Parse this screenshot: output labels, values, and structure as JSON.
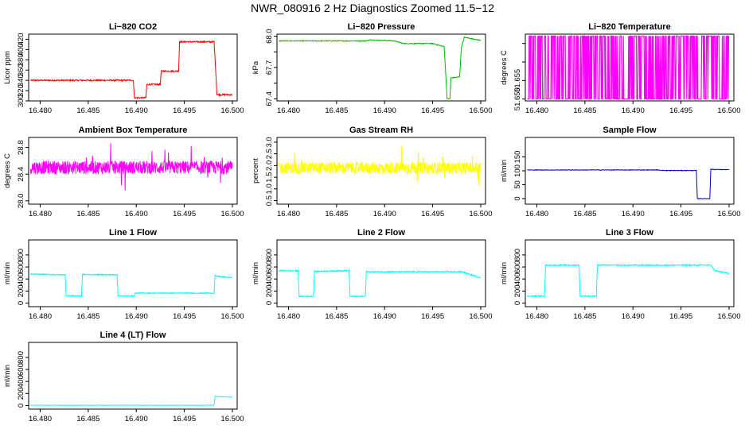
{
  "title": "NWR_080916  2 Hz Diagnostics Zoomed 11.5−12",
  "x_ticks": [
    "16.480",
    "16.485",
    "16.490",
    "16.495",
    "16.500"
  ],
  "chart_data": [
    {
      "type": "line",
      "title": "Li−820 CO2",
      "ylabel": "Licor ppm",
      "color": "#ff0000",
      "xlim": [
        16.4788,
        16.5005
      ],
      "ylim": [
        300,
        430
      ],
      "yticks": [
        300,
        320,
        340,
        360,
        380,
        400,
        420
      ],
      "segments": [
        [
          16.479,
          340
        ],
        [
          16.4897,
          340
        ],
        [
          16.4898,
          306
        ],
        [
          16.491,
          306
        ],
        [
          16.4911,
          332
        ],
        [
          16.4925,
          332
        ],
        [
          16.4926,
          358
        ],
        [
          16.4944,
          358
        ],
        [
          16.4945,
          415
        ],
        [
          16.4981,
          415
        ],
        [
          16.4984,
          312
        ],
        [
          16.5,
          312
        ]
      ],
      "noise": 1.5
    },
    {
      "type": "line",
      "title": "Li−820 Pressure",
      "ylabel": "kPa",
      "color": "#00bb00",
      "xlim": [
        16.4788,
        16.5005
      ],
      "ylim": [
        67.38,
        68.02
      ],
      "yticks": [
        "67.4",
        "",
        "67.7",
        "",
        "68.0"
      ],
      "ytick_values": [
        67.4,
        67.55,
        67.7,
        67.85,
        68.0
      ],
      "segments": [
        [
          16.479,
          67.955
        ],
        [
          16.488,
          67.955
        ],
        [
          16.4885,
          67.965
        ],
        [
          16.491,
          67.955
        ],
        [
          16.492,
          67.93
        ],
        [
          16.495,
          67.93
        ],
        [
          16.4962,
          67.9
        ],
        [
          16.4965,
          67.4
        ],
        [
          16.4968,
          67.4
        ],
        [
          16.4969,
          67.6
        ],
        [
          16.4978,
          67.61
        ],
        [
          16.498,
          67.9
        ],
        [
          16.4983,
          67.99
        ],
        [
          16.5,
          67.96
        ]
      ],
      "noise": 0.004
    },
    {
      "type": "line",
      "title": "Li−820 Temperature",
      "ylabel": "degrees C",
      "color": "#ff00ff",
      "xlim": [
        16.4788,
        16.5005
      ],
      "ylim": [
        51.6495,
        51.6675
      ],
      "yticks": [
        "51.650",
        "51.655",
        "",
        ""
      ],
      "ytick_values": [
        51.65,
        51.655,
        51.66,
        51.665
      ],
      "toggle": [
        51.65,
        51.667
      ]
    },
    {
      "type": "line",
      "title": "Ambient Box Temperature",
      "ylabel": "degrees C",
      "color": "#ff00ff",
      "xlim": [
        16.4788,
        16.5005
      ],
      "ylim": [
        27.95,
        28.95
      ],
      "yticks": [
        "28.0",
        "28.4",
        "28.8"
      ],
      "ytick_values": [
        28.0,
        28.4,
        28.8
      ],
      "center": 28.5,
      "noise": 0.1,
      "spikes": 0.32
    },
    {
      "type": "line",
      "title": "Gas Stream RH",
      "ylabel": "percent",
      "color": "#ffff00",
      "xlim": [
        16.4788,
        16.5005
      ],
      "ylim": [
        0.35,
        3.2
      ],
      "yticks": [
        "0.5",
        "1.0",
        "1.5",
        "2.0",
        "2.5",
        "3.0"
      ],
      "ytick_values": [
        0.5,
        1.0,
        1.5,
        2.0,
        2.5,
        3.0
      ],
      "center": 1.9,
      "noise": 0.25,
      "spikes": 1.0
    },
    {
      "type": "line",
      "title": "Sample Flow",
      "ylabel": "ml/min",
      "color": "#0000cc",
      "xlim": [
        16.4788,
        16.5005
      ],
      "ylim": [
        -20,
        220
      ],
      "yticks": [
        "0",
        "50",
        "100",
        "150"
      ],
      "ytick_values": [
        0,
        50,
        100,
        150
      ],
      "segments": [
        [
          16.479,
          103
        ],
        [
          16.4925,
          103
        ],
        [
          16.4935,
          101
        ],
        [
          16.4966,
          101
        ],
        [
          16.4967,
          0
        ],
        [
          16.498,
          0
        ],
        [
          16.4981,
          105
        ],
        [
          16.5,
          104
        ]
      ],
      "noise": 1.0
    },
    {
      "type": "line",
      "title": "Line 1 Flow",
      "ylabel": "ml/min",
      "color": "#00ffff",
      "xlim": [
        16.4788,
        16.5005
      ],
      "ylim": [
        -60,
        1050
      ],
      "yticks": [
        "0",
        "200",
        "400",
        "600",
        "800"
      ],
      "ytick_values": [
        0,
        200,
        400,
        600,
        800
      ],
      "segments": [
        [
          16.479,
          480
        ],
        [
          16.4826,
          470
        ],
        [
          16.4827,
          120
        ],
        [
          16.4843,
          120
        ],
        [
          16.4844,
          475
        ],
        [
          16.488,
          470
        ],
        [
          16.4881,
          120
        ],
        [
          16.4898,
          120
        ],
        [
          16.4899,
          165
        ],
        [
          16.4981,
          165
        ],
        [
          16.4982,
          450
        ],
        [
          16.5,
          420
        ]
      ],
      "noise": 8
    },
    {
      "type": "line",
      "title": "Line 2 Flow",
      "ylabel": "ml/min",
      "color": "#00ffff",
      "xlim": [
        16.4788,
        16.5005
      ],
      "ylim": [
        -60,
        1050
      ],
      "yticks": [
        "0",
        "200",
        "400",
        "600",
        "800"
      ],
      "ytick_values": [
        0,
        200,
        400,
        600,
        800
      ],
      "segments": [
        [
          16.479,
          540
        ],
        [
          16.481,
          535
        ],
        [
          16.4811,
          110
        ],
        [
          16.4826,
          110
        ],
        [
          16.4827,
          525
        ],
        [
          16.4863,
          540
        ],
        [
          16.4864,
          110
        ],
        [
          16.488,
          110
        ],
        [
          16.4881,
          520
        ],
        [
          16.498,
          520
        ],
        [
          16.5,
          420
        ]
      ],
      "noise": 10
    },
    {
      "type": "line",
      "title": "Line 3 Flow",
      "ylabel": "ml/min",
      "color": "#00ffff",
      "xlim": [
        16.4788,
        16.5005
      ],
      "ylim": [
        -60,
        1050
      ],
      "yticks": [
        "0",
        "200",
        "400",
        "600",
        "800"
      ],
      "ytick_values": [
        0,
        200,
        400,
        600,
        800
      ],
      "segments": [
        [
          16.479,
          115
        ],
        [
          16.4808,
          115
        ],
        [
          16.4809,
          630
        ],
        [
          16.4844,
          630
        ],
        [
          16.4845,
          115
        ],
        [
          16.4862,
          115
        ],
        [
          16.4863,
          630
        ],
        [
          16.4981,
          630
        ],
        [
          16.4985,
          540
        ],
        [
          16.5,
          490
        ]
      ],
      "noise": 10
    },
    {
      "type": "line",
      "title": "Line 4 (LT) Flow",
      "ylabel": "ml/min",
      "color": "#00ffff",
      "xlim": [
        16.4788,
        16.5005
      ],
      "ylim": [
        -60,
        1050
      ],
      "yticks": [
        "0",
        "200",
        "400",
        "600",
        "800"
      ],
      "ytick_values": [
        0,
        200,
        400,
        600,
        800
      ],
      "segments": [
        [
          16.479,
          5
        ],
        [
          16.4981,
          5
        ],
        [
          16.4982,
          150
        ],
        [
          16.5,
          140
        ]
      ],
      "noise": 2
    }
  ]
}
